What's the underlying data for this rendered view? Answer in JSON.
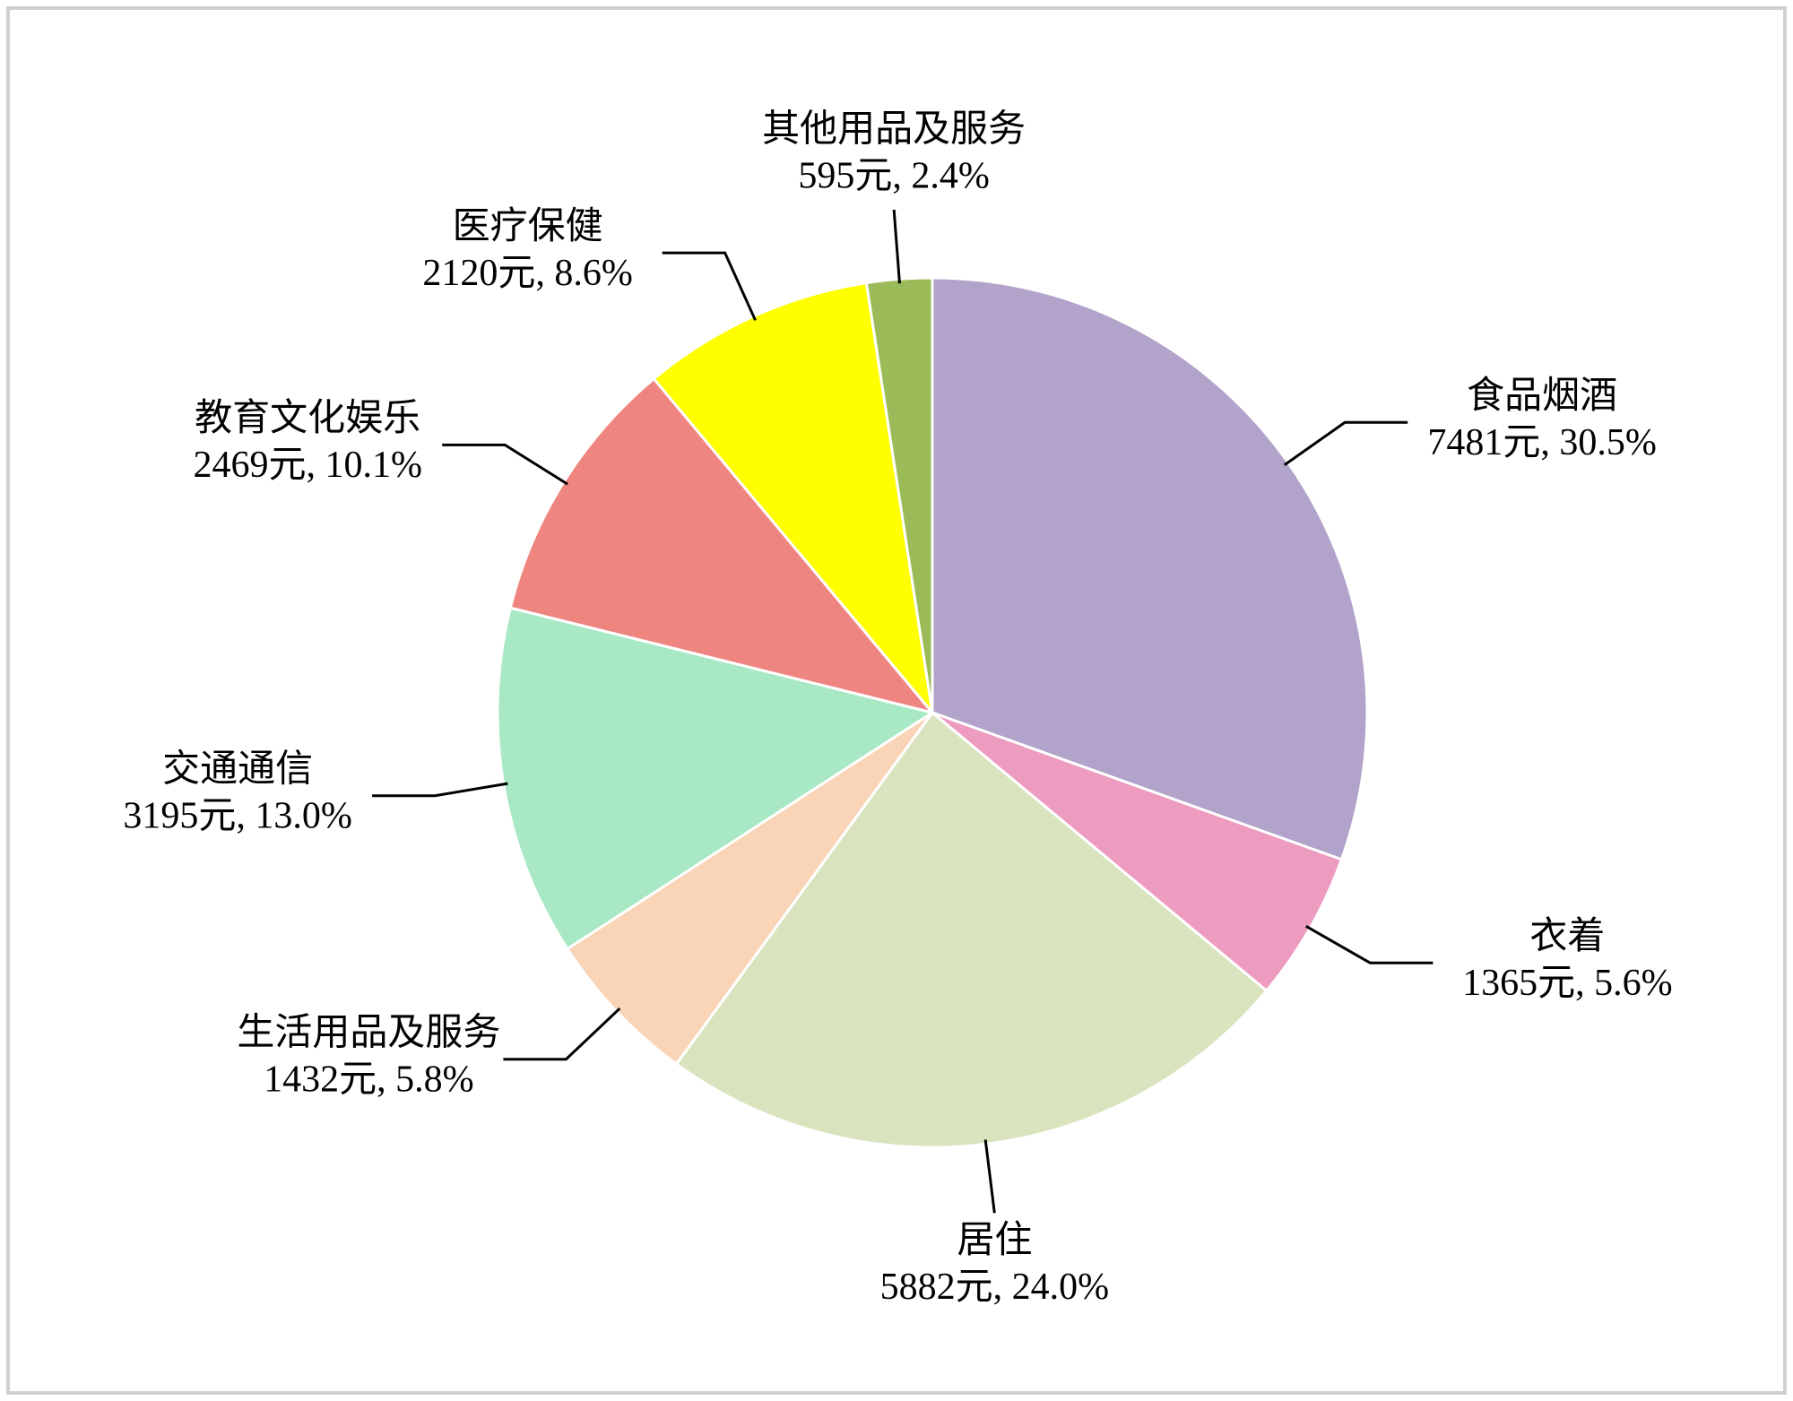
{
  "chart_data": {
    "type": "pie",
    "categories": [
      "食品烟酒",
      "衣着",
      "居住",
      "生活用品及服务",
      "交通通信",
      "教育文化娱乐",
      "医疗保健",
      "其他用品及服务"
    ],
    "values": [
      7481,
      1365,
      5882,
      1432,
      3195,
      2469,
      2120,
      595
    ],
    "value_labels": [
      "7481元, 30.5%",
      "1365元, 5.6%",
      "5882元, 24.0%",
      "1432元, 5.8%",
      "3195元, 13.0%",
      "2469元, 10.1%",
      "2120元, 8.6%",
      "595元, 2.4%"
    ],
    "colors": [
      "#b1a3c9",
      "#ee9bc0",
      "#d9e4bf",
      "#f9d4b6",
      "#a9e8c4",
      "#ef8580",
      "#ffff00",
      "#9bbb59"
    ]
  }
}
